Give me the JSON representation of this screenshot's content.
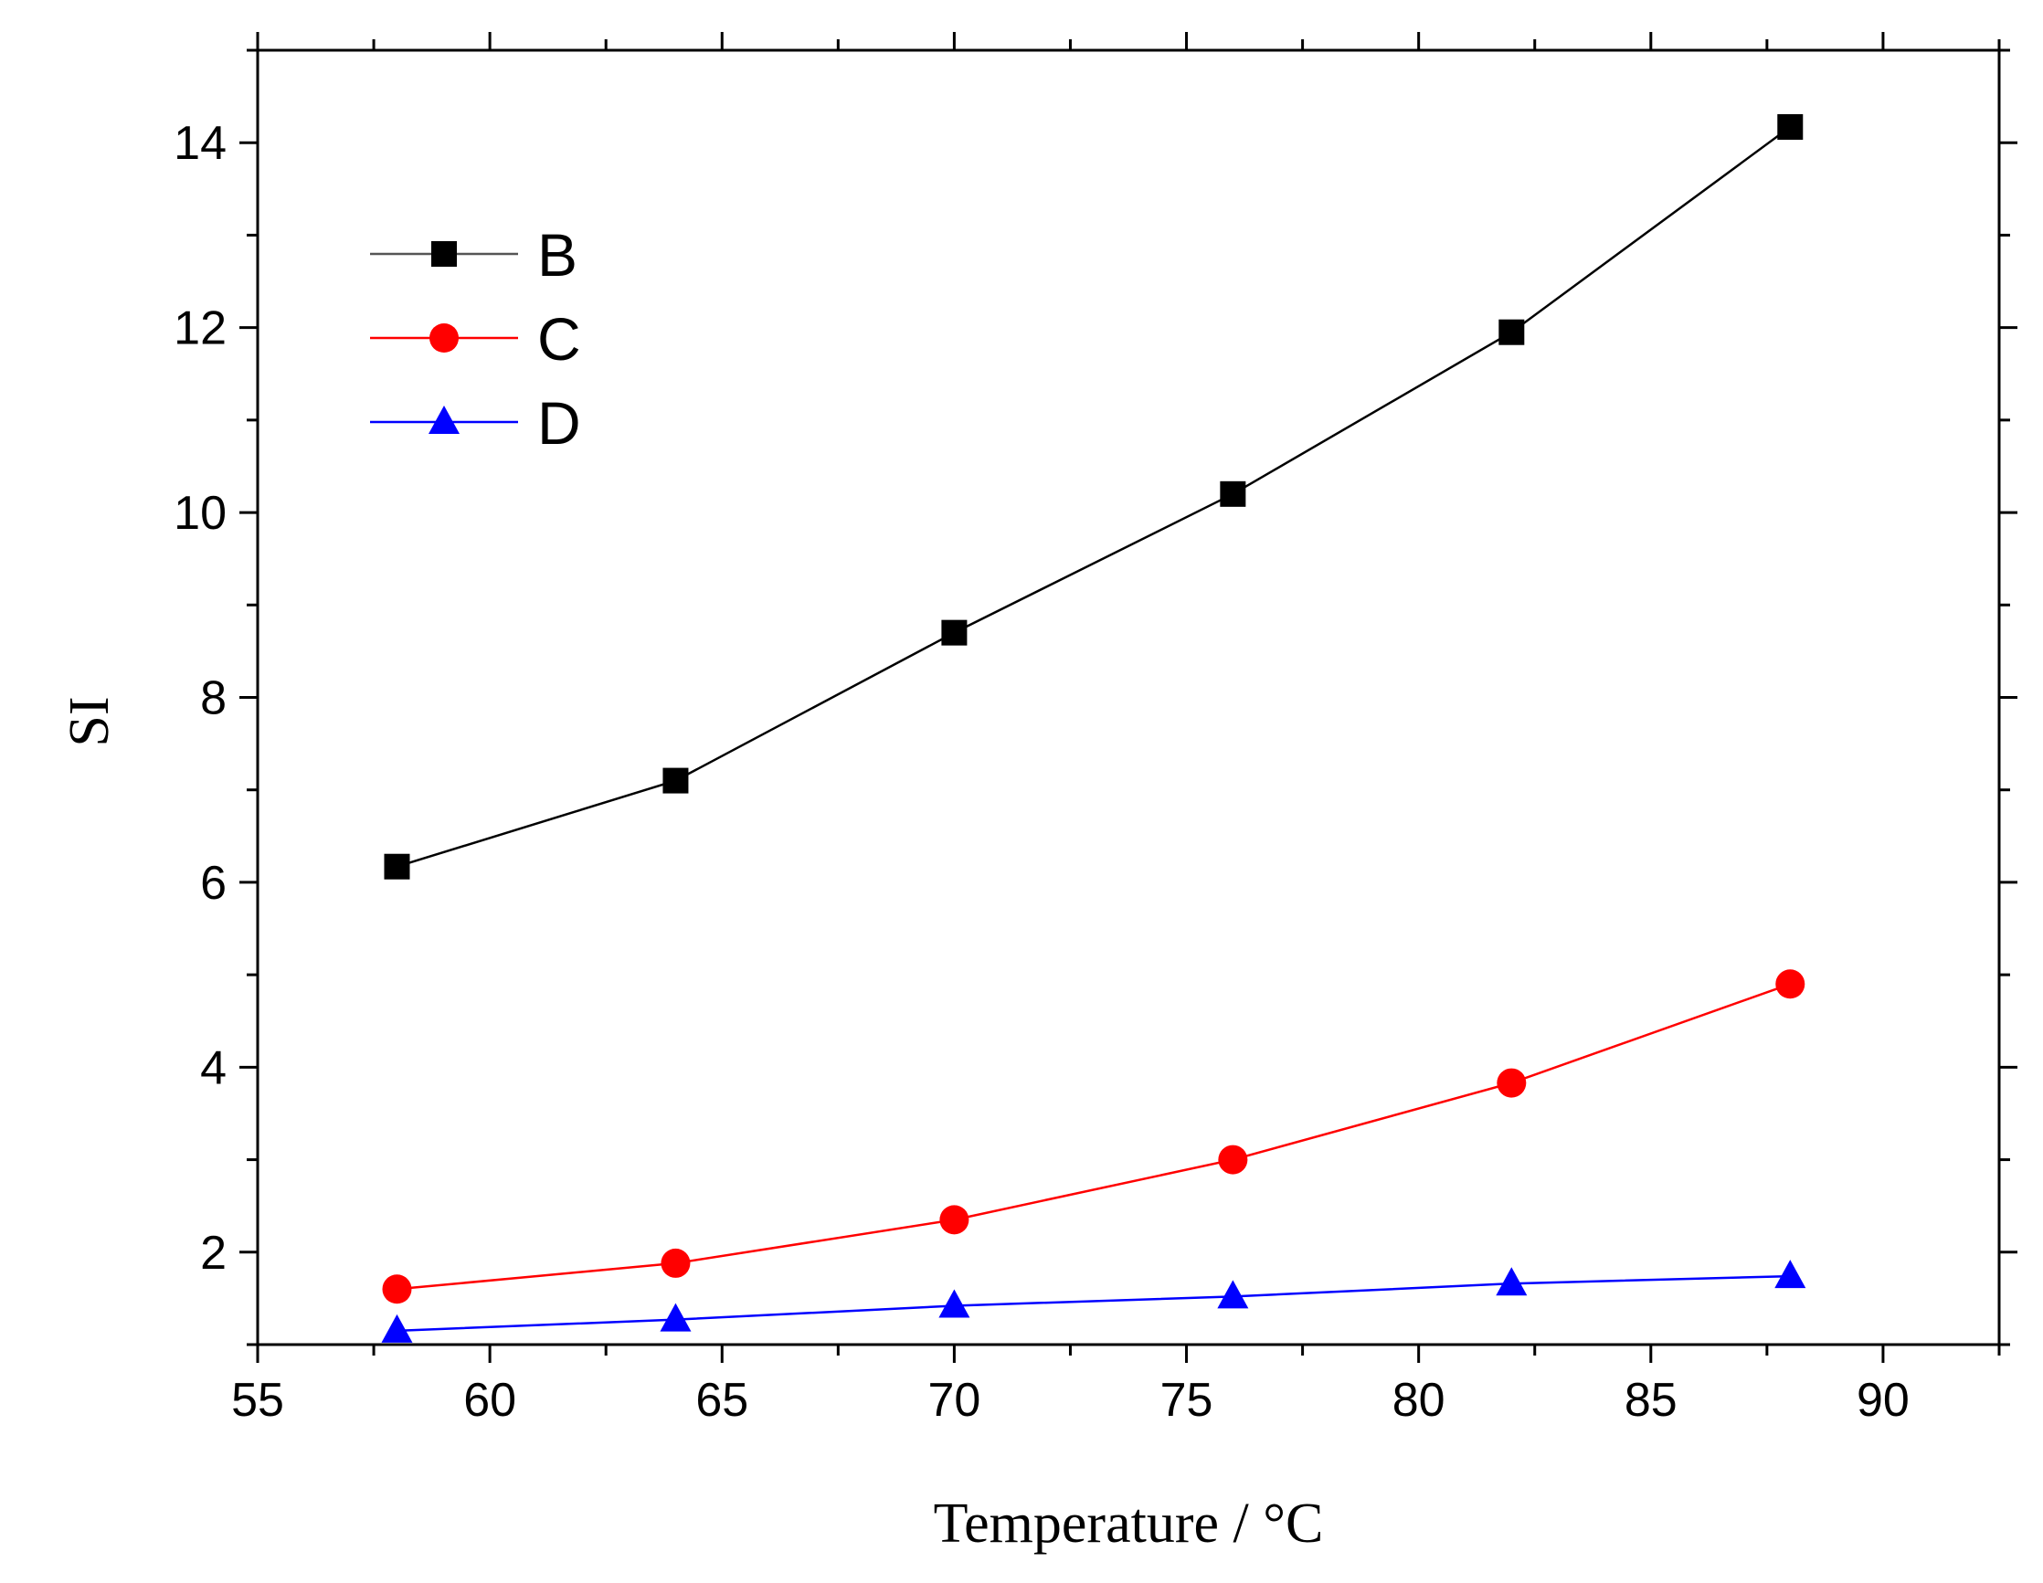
{
  "chart_data": {
    "type": "line",
    "title": "",
    "xlabel": "Temperature / °C",
    "ylabel": "SI",
    "xlim": [
      55,
      92.5
    ],
    "ylim": [
      1,
      15
    ],
    "xticks": [
      55,
      60,
      65,
      70,
      75,
      80,
      85,
      90
    ],
    "yticks": [
      2,
      4,
      6,
      8,
      10,
      12,
      14
    ],
    "x": [
      58,
      64,
      70,
      76,
      82,
      88
    ],
    "legend_position": "top-left",
    "series": [
      {
        "name": "B",
        "color": "#000000",
        "marker": "square",
        "values": [
          6.17,
          7.1,
          8.7,
          10.2,
          11.95,
          14.17
        ]
      },
      {
        "name": "C",
        "color": "#ff0000",
        "marker": "circle",
        "values": [
          1.6,
          1.88,
          2.35,
          3.0,
          3.83,
          4.9
        ]
      },
      {
        "name": "D",
        "color": "#0000ff",
        "marker": "triangle",
        "values": [
          1.15,
          1.27,
          1.42,
          1.52,
          1.66,
          1.74
        ]
      }
    ]
  }
}
